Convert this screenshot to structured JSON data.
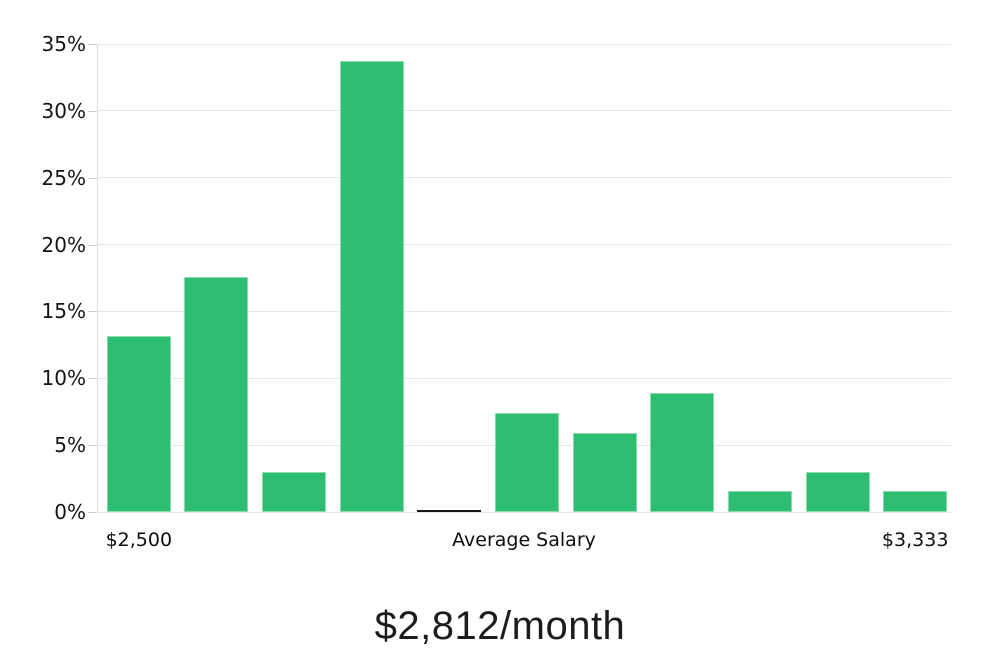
{
  "chart_data": {
    "type": "bar",
    "title": "$2,812/month",
    "values": [
      13.2,
      17.6,
      3.0,
      33.7,
      0.15,
      7.4,
      5.9,
      8.9,
      1.6,
      3.0,
      1.6
    ],
    "average_marker_index": 4,
    "y_tick_labels": [
      "0%",
      "5%",
      "10%",
      "15%",
      "20%",
      "25%",
      "30%",
      "35%"
    ],
    "ylim": [
      0,
      35
    ],
    "y_tick_step": 5,
    "grid": true,
    "legend": false,
    "x_axis_labels": {
      "left": "$2,500",
      "center": "Average Salary",
      "right": "$3,333"
    },
    "colors": {
      "bar_fill": "#2dbe71",
      "bar_border": "#8adbae",
      "marker": "#14161c",
      "gridline": "#e7e7e7",
      "axis_line": "#dcdcdc",
      "tick": "#cfcfcf",
      "label_text": "#141414",
      "title_text": "#1c1c1c",
      "background": "#ffffff"
    }
  }
}
